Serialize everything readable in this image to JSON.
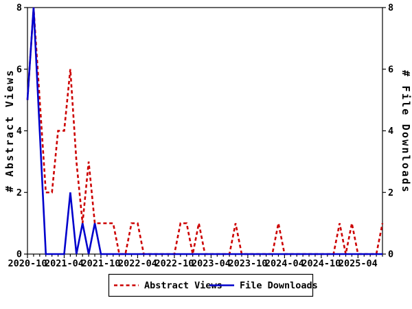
{
  "chart_data": {
    "type": "line",
    "title": "",
    "ylabel_left": "# Abstract Views",
    "ylabel_right": "# File Downloads",
    "ylim": [
      0,
      8
    ],
    "y_ticks": [
      0,
      2,
      4,
      6,
      8
    ],
    "grid": false,
    "legend_position": "bottom-center",
    "x_tick_label_every": 6,
    "x_tick_labels": [
      "2020-10",
      "2021-04",
      "2021-10",
      "2022-04",
      "2022-10",
      "2023-04",
      "2023-10",
      "2024-04",
      "2024-10",
      "2025-04"
    ],
    "x_months": [
      "2020-10",
      "2020-11",
      "2020-12",
      "2021-01",
      "2021-02",
      "2021-03",
      "2021-04",
      "2021-05",
      "2021-06",
      "2021-07",
      "2021-08",
      "2021-09",
      "2021-10",
      "2021-11",
      "2021-12",
      "2022-01",
      "2022-02",
      "2022-03",
      "2022-04",
      "2022-05",
      "2022-06",
      "2022-07",
      "2022-08",
      "2022-09",
      "2022-10",
      "2022-11",
      "2022-12",
      "2023-01",
      "2023-02",
      "2023-03",
      "2023-04",
      "2023-05",
      "2023-06",
      "2023-07",
      "2023-08",
      "2023-09",
      "2023-10",
      "2023-11",
      "2023-12",
      "2024-01",
      "2024-02",
      "2024-03",
      "2024-04",
      "2024-05",
      "2024-06",
      "2024-07",
      "2024-08",
      "2024-09",
      "2024-10",
      "2024-11",
      "2024-12",
      "2025-01",
      "2025-02",
      "2025-03",
      "2025-04",
      "2025-05",
      "2025-06",
      "2025-07",
      "2025-08"
    ],
    "series": [
      {
        "name": "Abstract Views",
        "color": "#cc0000",
        "style": "dashed",
        "axis": "left",
        "values": [
          5,
          8,
          5,
          2,
          2,
          4,
          4,
          6,
          3,
          1,
          3,
          1,
          1,
          1,
          1,
          0,
          0,
          1,
          1,
          0,
          0,
          0,
          0,
          0,
          0,
          1,
          1,
          0,
          1,
          0,
          0,
          0,
          0,
          0,
          1,
          0,
          0,
          0,
          0,
          0,
          0,
          1,
          0,
          0,
          0,
          0,
          0,
          0,
          0,
          0,
          0,
          1,
          0,
          1,
          0,
          0,
          0,
          0,
          1
        ]
      },
      {
        "name": "File Downloads",
        "color": "#0000cc",
        "style": "solid",
        "axis": "right",
        "values": [
          5,
          8,
          4,
          0,
          0,
          0,
          0,
          2,
          0,
          1,
          0,
          1,
          0,
          0,
          0,
          0,
          0,
          0,
          0,
          0,
          0,
          0,
          0,
          0,
          0,
          0,
          0,
          0,
          0,
          0,
          0,
          0,
          0,
          0,
          0,
          0,
          0,
          0,
          0,
          0,
          0,
          0,
          0,
          0,
          0,
          0,
          0,
          0,
          0,
          0,
          0,
          0,
          0,
          0,
          0,
          0,
          0,
          0,
          0
        ]
      }
    ]
  }
}
